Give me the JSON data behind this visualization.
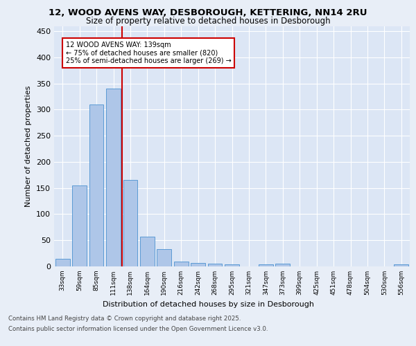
{
  "title_line1": "12, WOOD AVENS WAY, DESBOROUGH, KETTERING, NN14 2RU",
  "title_line2": "Size of property relative to detached houses in Desborough",
  "xlabel": "Distribution of detached houses by size in Desborough",
  "ylabel": "Number of detached properties",
  "categories": [
    "33sqm",
    "59sqm",
    "85sqm",
    "111sqm",
    "138sqm",
    "164sqm",
    "190sqm",
    "216sqm",
    "242sqm",
    "268sqm",
    "295sqm",
    "321sqm",
    "347sqm",
    "373sqm",
    "399sqm",
    "425sqm",
    "451sqm",
    "478sqm",
    "504sqm",
    "530sqm",
    "556sqm"
  ],
  "values": [
    15,
    155,
    310,
    340,
    165,
    57,
    33,
    9,
    7,
    5,
    4,
    0,
    4,
    5,
    0,
    0,
    0,
    0,
    0,
    0,
    4
  ],
  "bar_color": "#aec6e8",
  "bar_edge_color": "#5b9bd5",
  "vline_x": 3.5,
  "vline_color": "#cc0000",
  "annotation_title": "12 WOOD AVENS WAY: 139sqm",
  "annotation_line1": "← 75% of detached houses are smaller (820)",
  "annotation_line2": "25% of semi-detached houses are larger (269) →",
  "annotation_box_color": "#cc0000",
  "ylim": [
    0,
    460
  ],
  "yticks": [
    0,
    50,
    100,
    150,
    200,
    250,
    300,
    350,
    400,
    450
  ],
  "footer_line1": "Contains HM Land Registry data © Crown copyright and database right 2025.",
  "footer_line2": "Contains public sector information licensed under the Open Government Licence v3.0.",
  "bg_color": "#e8eef7",
  "plot_bg_color": "#dce6f5"
}
